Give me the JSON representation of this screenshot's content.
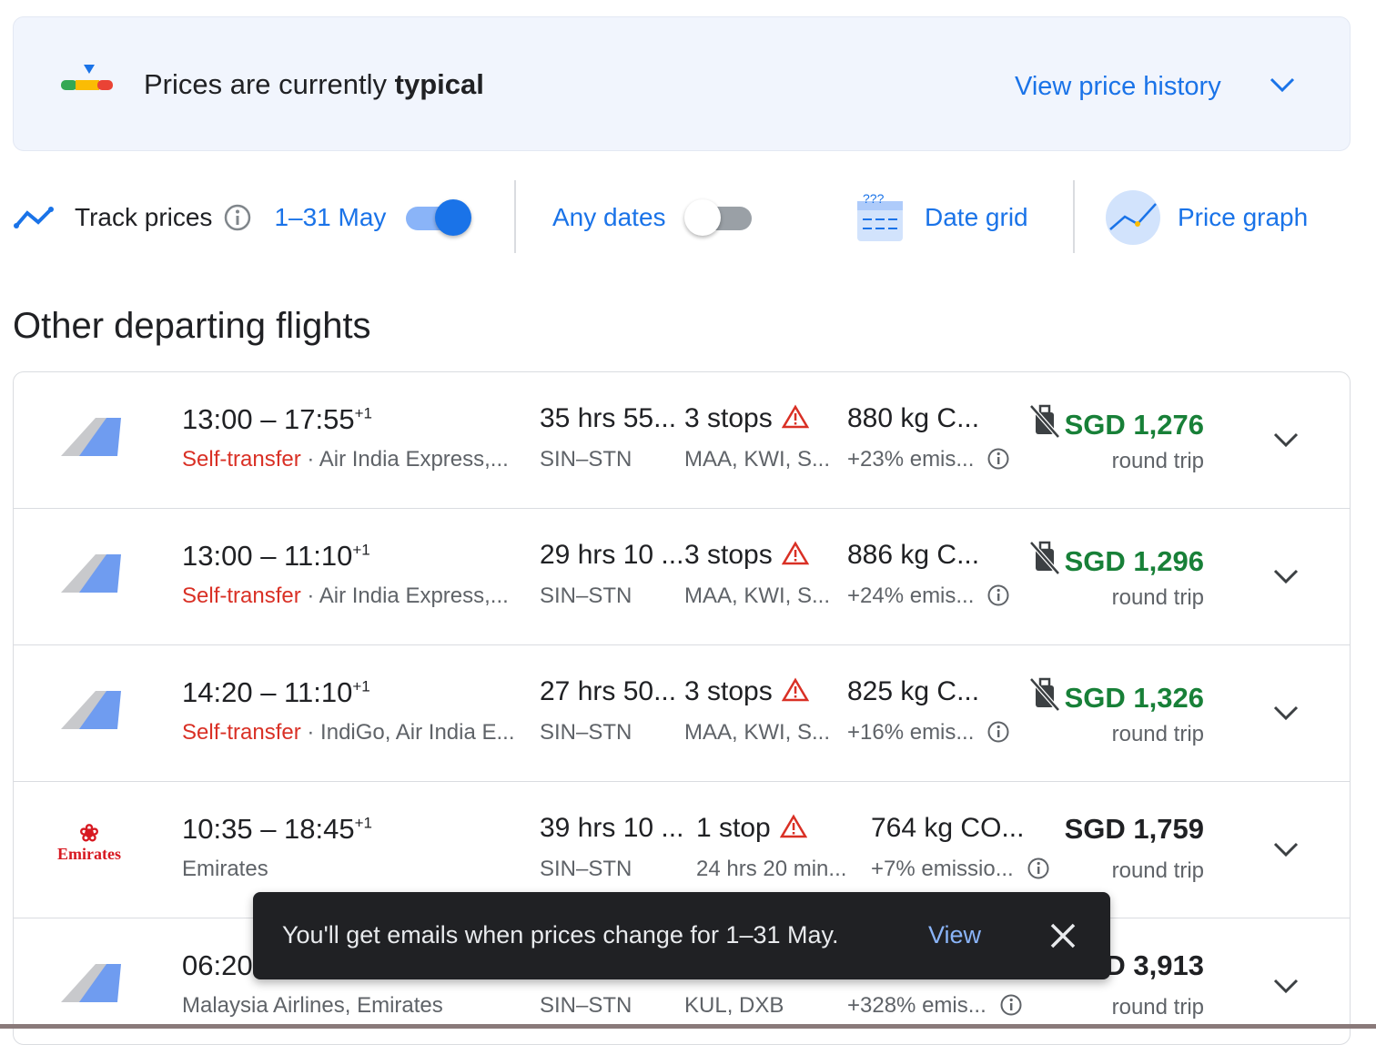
{
  "banner": {
    "title_prefix": "Prices are currently ",
    "title_emph": "typical",
    "link": "View price history"
  },
  "controls": {
    "track_label": "Track prices",
    "dates": "1–31 May",
    "track_on": true,
    "any_dates": "Any dates",
    "any_dates_on": false,
    "date_grid": "Date grid",
    "price_graph": "Price graph"
  },
  "section_title": "Other departing flights",
  "flights": [
    {
      "time": "13:00 – 17:55",
      "plus": "+1",
      "tag": "Self-transfer",
      "airline": "Air India Express,...",
      "duration": "35 hrs 55...",
      "route": "SIN–STN",
      "stops": "3 stops",
      "via": "MAA, KWI, S...",
      "emissions": "880 kg C...",
      "emission_pct": "+23% emis...",
      "price": "SGD 1,276",
      "price_type": "round trip",
      "warning": true,
      "no_bag": true,
      "logo": "generic-airline"
    },
    {
      "time": "13:00 – 11:10",
      "plus": "+1",
      "tag": "Self-transfer",
      "airline": "Air India Express,...",
      "duration": "29 hrs 10 ...",
      "route": "SIN–STN",
      "stops": "3 stops",
      "via": "MAA, KWI, S...",
      "emissions": "886 kg C...",
      "emission_pct": "+24% emis...",
      "price": "SGD 1,296",
      "price_type": "round trip",
      "warning": true,
      "no_bag": true,
      "logo": "generic-airline"
    },
    {
      "time": "14:20 – 11:10",
      "plus": "+1",
      "tag": "Self-transfer",
      "airline": "IndiGo, Air India E...",
      "duration": "27 hrs 50...",
      "route": "SIN–STN",
      "stops": "3 stops",
      "via": "MAA, KWI, S...",
      "emissions": "825 kg C...",
      "emission_pct": "+16% emis...",
      "price": "SGD 1,326",
      "price_type": "round trip",
      "warning": true,
      "no_bag": true,
      "logo": "generic-airline"
    },
    {
      "time": "10:35 – 18:45",
      "plus": "+1",
      "tag": "",
      "airline": "Emirates",
      "duration": "39 hrs 10 ...",
      "route": "SIN–STN",
      "stops": "1 stop",
      "via": "24 hrs 20 min...",
      "emissions": "764 kg CO...",
      "emission_pct": "+7% emissio...",
      "price": "SGD 1,759",
      "price_type": "round trip",
      "warning": true,
      "no_bag": false,
      "logo": "Emirates"
    },
    {
      "time": "06:20",
      "plus": "",
      "tag": "",
      "airline": "Malaysia Airlines, Emirates",
      "duration": "",
      "route": "SIN–STN",
      "stops": "",
      "via": "KUL, DXB",
      "emissions": "",
      "emission_pct": "+328% emis...",
      "price": "D 3,913",
      "price_type": "round trip",
      "warning": false,
      "no_bag": false,
      "logo": "generic-airline"
    }
  ],
  "toast": {
    "message": "You'll get emails when prices change for 1–31 May.",
    "action": "View"
  },
  "colors": {
    "accent": "#1a73e8",
    "price_green": "#188038",
    "warning_red": "#d93025",
    "toast_bg": "#202124"
  }
}
